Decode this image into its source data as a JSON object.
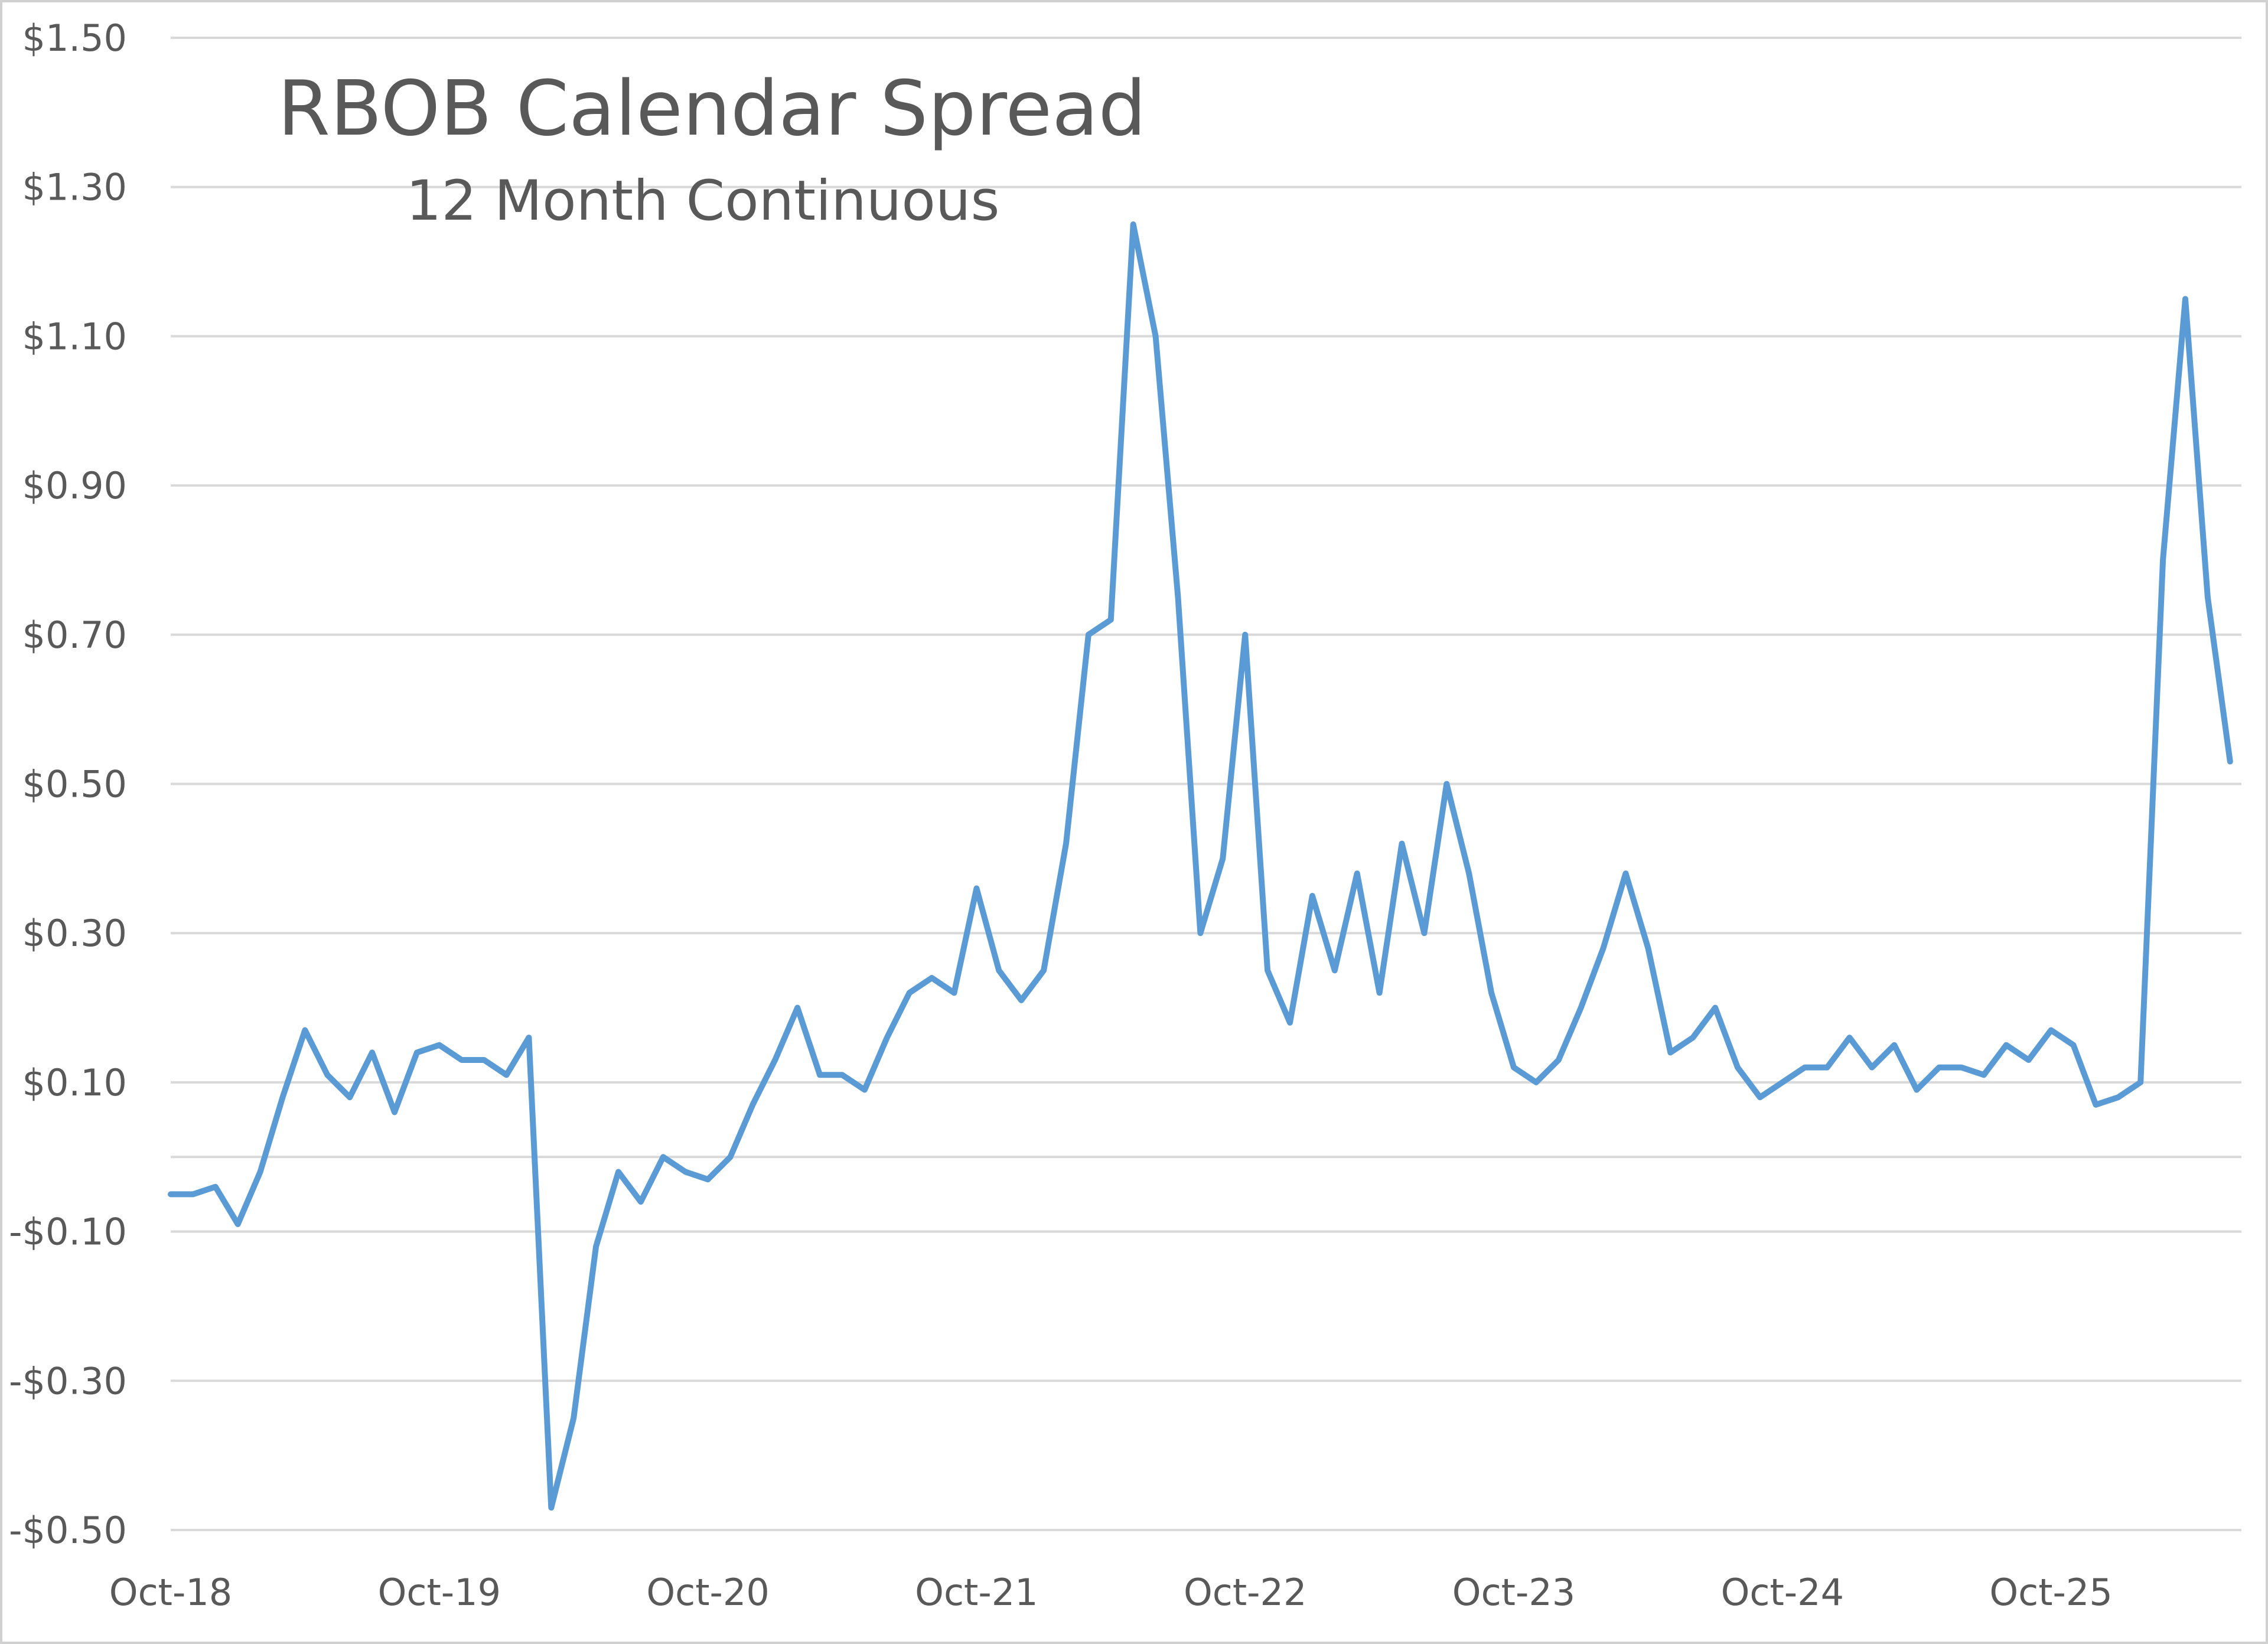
{
  "chart_data": {
    "type": "line",
    "title": "RBOB Calendar Spread",
    "subtitle": "12 Month Continuous",
    "color": "#5b9bd5",
    "grid": true,
    "categories": [
      "Oct-18",
      null,
      null,
      null,
      null,
      null,
      null,
      null,
      null,
      null,
      null,
      null,
      "Oct-19",
      null,
      null,
      null,
      null,
      null,
      null,
      null,
      null,
      null,
      null,
      null,
      "Oct-20",
      null,
      null,
      null,
      null,
      null,
      null,
      null,
      null,
      null,
      null,
      null,
      "Oct-21",
      null,
      null,
      null,
      null,
      null,
      null,
      null,
      null,
      null,
      null,
      null,
      "Oct-22",
      null,
      null,
      null,
      null,
      null,
      null,
      null,
      null,
      null,
      null,
      null,
      "Oct-23",
      null,
      null,
      null,
      null,
      null,
      null,
      null,
      null,
      null,
      null,
      null,
      "Oct-24",
      null,
      null,
      null,
      null,
      null,
      null,
      null,
      null,
      null,
      null,
      null,
      "Oct-25",
      null,
      null,
      null,
      null,
      null,
      null,
      null,
      null
    ],
    "values": [
      -0.05,
      -0.05,
      -0.04,
      -0.09,
      -0.02,
      0.08,
      0.17,
      0.11,
      0.08,
      0.14,
      0.06,
      0.14,
      0.15,
      0.13,
      0.13,
      0.11,
      0.16,
      -0.47,
      -0.35,
      -0.12,
      -0.02,
      -0.06,
      0.0,
      -0.02,
      -0.03,
      0.0,
      0.07,
      0.13,
      0.2,
      0.11,
      0.11,
      0.09,
      0.16,
      0.22,
      0.24,
      0.22,
      0.36,
      0.25,
      0.21,
      0.25,
      0.42,
      0.7,
      0.72,
      1.25,
      1.1,
      0.75,
      0.3,
      0.4,
      0.7,
      0.25,
      0.18,
      0.35,
      0.25,
      0.38,
      0.22,
      0.42,
      0.3,
      0.5,
      0.38,
      0.22,
      0.12,
      0.1,
      0.13,
      0.2,
      0.28,
      0.38,
      0.28,
      0.14,
      0.16,
      0.2,
      0.12,
      0.08,
      0.1,
      0.12,
      0.12,
      0.16,
      0.12,
      0.15,
      0.09,
      0.12,
      0.12,
      0.11,
      0.15,
      0.13,
      0.17,
      0.15,
      0.07,
      0.08,
      0.1,
      0.8,
      1.15,
      0.75,
      0.53
    ],
    "ylim": [
      -0.5,
      1.5
    ],
    "yticks": [
      {
        "value": -0.5,
        "label": "-$0.50"
      },
      {
        "value": -0.3,
        "label": "-$0.30"
      },
      {
        "value": -0.1,
        "label": "-$0.10"
      },
      {
        "value": 0.1,
        "label": "$0.10"
      },
      {
        "value": 0.3,
        "label": "$0.30"
      },
      {
        "value": 0.5,
        "label": "$0.50"
      },
      {
        "value": 0.7,
        "label": "$0.70"
      },
      {
        "value": 0.9,
        "label": "$0.90"
      },
      {
        "value": 1.1,
        "label": "$1.10"
      },
      {
        "value": 1.3,
        "label": "$1.30"
      },
      {
        "value": 1.5,
        "label": "$1.50"
      }
    ]
  }
}
